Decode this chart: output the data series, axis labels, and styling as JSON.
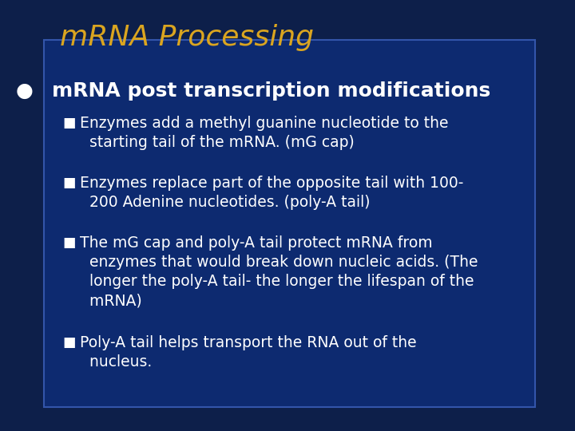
{
  "title": "mRNA Processing",
  "title_color": "#DAA520",
  "title_fontsize": 26,
  "bg_color_outer": "#0d1f4a",
  "bg_color_inner": "#0d2a70",
  "bullet_color": "#ffffff",
  "bullet_text": "mRNA post transcription modifications",
  "bullet_fontsize": 18,
  "sub_bullets": [
    "Enzymes add a methyl guanine nucleotide to the\n  starting tail of the mRNA. (mG cap)",
    "Enzymes replace part of the opposite tail with 100-\n  200 Adenine nucleotides. (poly-A tail)",
    "The mG cap and poly-A tail protect mRNA from\n  enzymes that would break down nucleic acids. (The\n  longer the poly-A tail- the longer the lifespan of the\n  mRNA)",
    "Poly-A tail helps transport the RNA out of the\n  nucleus."
  ],
  "sub_fontsize": 13.5,
  "sub_color": "#ffffff",
  "box_border_color": "#3355aa",
  "figsize": [
    7.2,
    5.4
  ],
  "dpi": 100
}
